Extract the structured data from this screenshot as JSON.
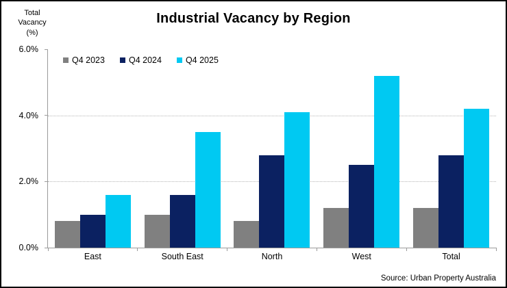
{
  "title": "Industrial Vacancy by Region",
  "y_axis_title": "Total\nVacancy\n(%)",
  "source": "Source: Urban Property Australia",
  "legend": {
    "items": [
      "Q4 2023",
      "Q4 2024",
      "Q4 2025"
    ]
  },
  "chart_data": {
    "type": "bar",
    "title": "Industrial Vacancy by Region",
    "categories": [
      "East",
      "South East",
      "North",
      "West",
      "Total"
    ],
    "series": [
      {
        "name": "Q4 2023",
        "color": "#808080",
        "values": [
          0.8,
          1.0,
          0.8,
          1.2,
          1.2
        ]
      },
      {
        "name": "Q4 2024",
        "color": "#0B2161",
        "values": [
          1.0,
          1.6,
          2.8,
          2.5,
          2.8
        ]
      },
      {
        "name": "Q4 2025",
        "color": "#00C9F2",
        "values": [
          1.6,
          3.5,
          4.1,
          5.2,
          4.2
        ]
      }
    ],
    "ylabel": "Total Vacancy (%)",
    "xlabel": "",
    "ylim": [
      0,
      6
    ],
    "yticks": [
      {
        "value": 0,
        "label": "0.0%"
      },
      {
        "value": 2,
        "label": "2.0%"
      },
      {
        "value": 4,
        "label": "4.0%"
      },
      {
        "value": 6,
        "label": "6.0%"
      }
    ],
    "gridlines_at": [
      2,
      4
    ],
    "grid": "horizontal-dotted",
    "legend_position": "top-left-inside",
    "source": "Source: Urban Property Australia"
  }
}
